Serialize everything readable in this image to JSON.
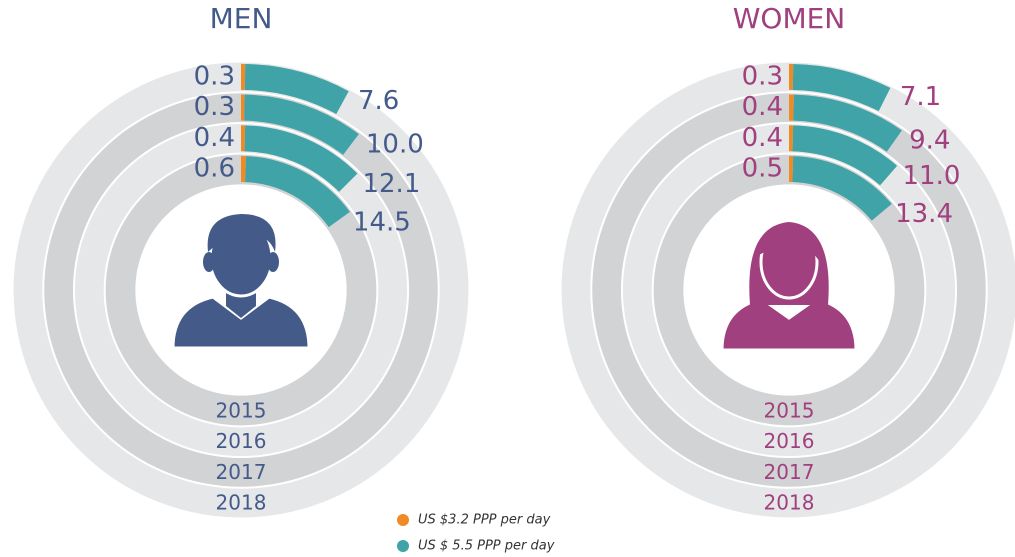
{
  "chart_data": [
    {
      "type": "radial_bar",
      "title": "MEN",
      "color": "#445b8a",
      "categories": [
        "2015",
        "2016",
        "2017",
        "2018"
      ],
      "ylim": [
        0,
        100
      ],
      "series": [
        {
          "name": "US $3.2 PPP per day",
          "color": "#f08a24",
          "values": [
            0.6,
            0.4,
            0.3,
            0.3
          ]
        },
        {
          "name": "US $ 5.5 PPP per day",
          "color": "#3fa3a8",
          "values": [
            14.5,
            12.1,
            10.0,
            7.6
          ],
          "value_labels": [
            "14.5",
            "12.1",
            "10.0",
            "7.6"
          ]
        }
      ]
    },
    {
      "type": "radial_bar",
      "title": "WOMEN",
      "color": "#a0407f",
      "categories": [
        "2015",
        "2016",
        "2017",
        "2018"
      ],
      "ylim": [
        0,
        100
      ],
      "series": [
        {
          "color": "#f08a24",
          "values": [
            0.5,
            0.4,
            0.4,
            0.3
          ]
        },
        {
          "color": "#3fa3a8",
          "values": [
            13.4,
            11.0,
            9.4,
            7.1
          ],
          "value_labels": [
            "13.4",
            "11.0",
            "9.4",
            "7.1"
          ]
        }
      ]
    }
  ]
}
